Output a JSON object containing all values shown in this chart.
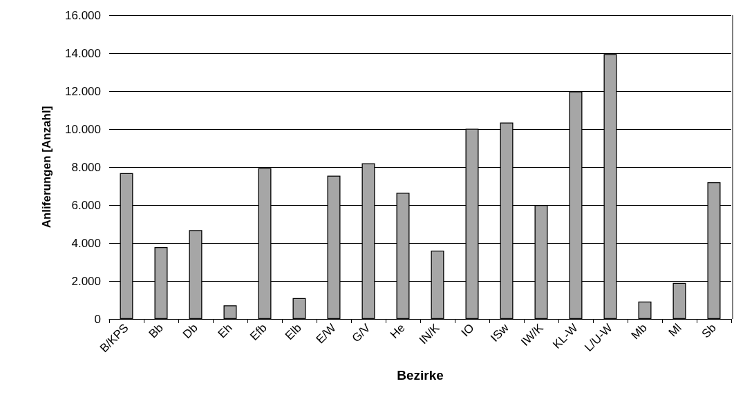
{
  "chart_data": {
    "type": "bar",
    "xlabel": "Bezirke",
    "ylabel": "Anliferungen [Anzahl]",
    "categories": [
      "B/KPS",
      "Bb",
      "Db",
      "Eh",
      "Efb",
      "Elb",
      "E/W",
      "G/V",
      "He",
      "IN/K",
      "IO",
      "ISw",
      "IW/K",
      "KL-W",
      "L/U-W",
      "Mb",
      "Ml",
      "Sb"
    ],
    "values": [
      7680,
      3780,
      4680,
      720,
      7950,
      1100,
      7550,
      8200,
      6650,
      3600,
      10020,
      10350,
      6000,
      11980,
      13950,
      920,
      1900,
      7200
    ],
    "color": "#a6a6a6",
    "ylim": [
      0,
      16000
    ],
    "yticks": [
      {
        "value": 0,
        "label": "0"
      },
      {
        "value": 2000,
        "label": "2.000"
      },
      {
        "value": 4000,
        "label": "4.000"
      },
      {
        "value": 6000,
        "label": "6.000"
      },
      {
        "value": 8000,
        "label": "8.000"
      },
      {
        "value": 10000,
        "label": "10.000"
      },
      {
        "value": 12000,
        "label": "12.000"
      },
      {
        "value": 14000,
        "label": "14.000"
      },
      {
        "value": 16000,
        "label": "16.000"
      }
    ],
    "grid": "y"
  }
}
